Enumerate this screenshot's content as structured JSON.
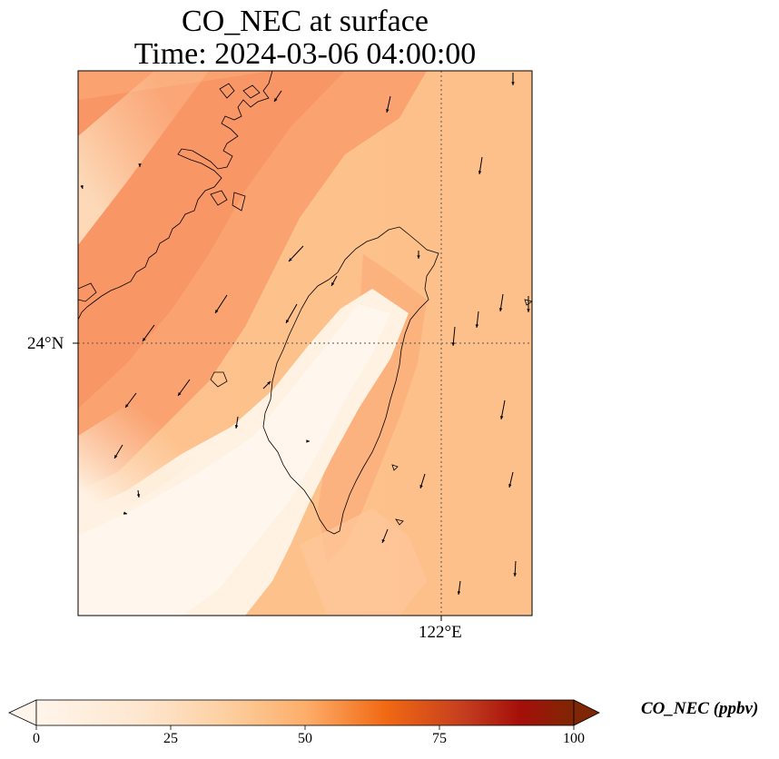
{
  "title": {
    "line1": "CO_NEC at surface",
    "line2": "Time: 2024-03-06 04:00:00"
  },
  "axes": {
    "lat_tick": "24°N",
    "lon_tick": "122°E"
  },
  "colorbar": {
    "label": "CO_NEC (ppbv)",
    "ticks": [
      "0",
      "25",
      "50",
      "75",
      "100"
    ],
    "range": [
      0,
      100
    ],
    "colormap": "Oranges",
    "extend": "both"
  },
  "colors": {
    "low": "#fff5eb",
    "mid": "#fdae6b",
    "high": "#7f2704",
    "coastline": "#000000",
    "gridline": "#555555"
  }
}
